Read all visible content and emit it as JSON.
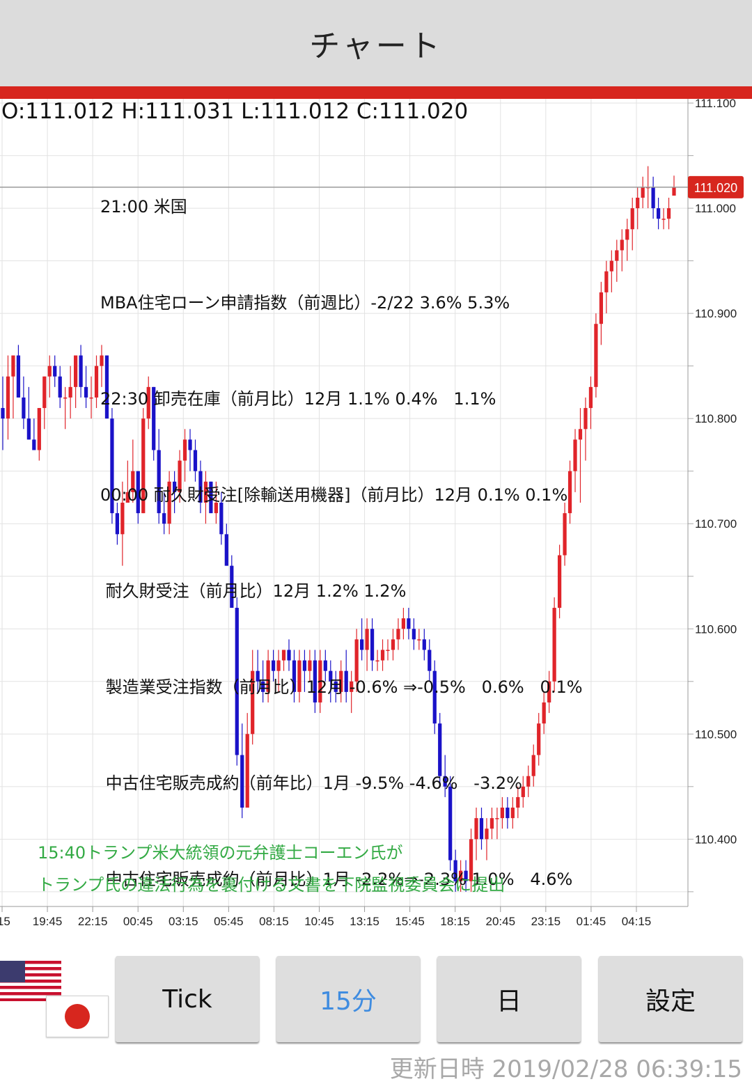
{
  "header": {
    "title": "チャート"
  },
  "ohlc": "O:111.012 H:111.031 L:111.012 C:111.020",
  "events": [
    "21:00 米国",
    "MBA住宅ローン申請指数（前週比）-2/22 3.6% 5.3%",
    "22:30 卸売在庫（前月比）12月 1.1% 0.4%   1.1%",
    "00:00 耐久財受注[除輸送用機器]（前月比）12月 0.1% 0.1%",
    " 耐久財受注（前月比）12月 1.2% 1.2%",
    " 製造業受注指数（前月比）12月 -0.6% ⇒-0.5%   0.6%   0.1%",
    " 中古住宅販売成約（前年比）1月 -9.5% -4.6%   -3.2%",
    " 中古住宅販売成約（前月比）1月 -2.2%⇒-2.3% 1.0%   4.6%"
  ],
  "news": [
    "15:40トランプ米大統領の元弁護士コーエン氏が",
    "トランプ氏の違法行為を裏付ける文書を下院監視委員会に提出"
  ],
  "colors": {
    "up": "#e0242a",
    "down": "#1a12c8",
    "accent": "#d7261e",
    "news": "#33aa44",
    "active_tab": "#3f8ce0"
  },
  "chart_data": {
    "type": "candlestick",
    "current_price_label": "111.020",
    "current_price": 111.02,
    "ylim": [
      110.336,
      111.104
    ],
    "y_ticks": [
      "111.100",
      "111.000",
      "110.900",
      "110.800",
      "110.700",
      "110.600",
      "110.500",
      "110.400"
    ],
    "x_ticks": [
      ":15",
      "19:45",
      "22:15",
      "00:45",
      "03:15",
      "05:45",
      "08:15",
      "10:45",
      "13:15",
      "15:45",
      "18:15",
      "20:45",
      "23:15",
      "01:45",
      "04:15"
    ],
    "candles": [
      [
        110.81,
        110.84,
        110.77,
        110.8
      ],
      [
        110.8,
        110.86,
        110.78,
        110.84
      ],
      [
        110.84,
        110.86,
        110.8,
        110.86
      ],
      [
        110.86,
        110.87,
        110.82,
        110.82
      ],
      [
        110.82,
        110.84,
        110.79,
        110.8
      ],
      [
        110.8,
        110.83,
        110.78,
        110.78
      ],
      [
        110.78,
        110.8,
        110.77,
        110.77
      ],
      [
        110.77,
        110.81,
        110.76,
        110.81
      ],
      [
        110.81,
        110.84,
        110.79,
        110.84
      ],
      [
        110.84,
        110.86,
        110.82,
        110.85
      ],
      [
        110.85,
        110.86,
        110.83,
        110.84
      ],
      [
        110.84,
        110.85,
        110.81,
        110.82
      ],
      [
        110.82,
        110.83,
        110.79,
        110.82
      ],
      [
        110.82,
        110.85,
        110.8,
        110.83
      ],
      [
        110.83,
        110.86,
        110.81,
        110.86
      ],
      [
        110.86,
        110.87,
        110.82,
        110.83
      ],
      [
        110.83,
        110.85,
        110.81,
        110.82
      ],
      [
        110.82,
        110.84,
        110.8,
        110.82
      ],
      [
        110.82,
        110.86,
        110.81,
        110.85
      ],
      [
        110.85,
        110.87,
        110.83,
        110.86
      ],
      [
        110.86,
        110.86,
        110.8,
        110.8
      ],
      [
        110.8,
        110.81,
        110.7,
        110.71
      ],
      [
        110.71,
        110.72,
        110.68,
        110.69
      ],
      [
        110.69,
        110.74,
        110.66,
        110.72
      ],
      [
        110.72,
        110.76,
        110.72,
        110.73
      ],
      [
        110.73,
        110.78,
        110.72,
        110.75
      ],
      [
        110.75,
        110.75,
        110.7,
        110.71
      ],
      [
        110.71,
        110.81,
        110.71,
        110.8
      ],
      [
        110.8,
        110.84,
        110.79,
        110.83
      ],
      [
        110.83,
        110.83,
        110.76,
        110.77
      ],
      [
        110.77,
        110.79,
        110.7,
        110.71
      ],
      [
        110.71,
        110.73,
        110.69,
        110.7
      ],
      [
        110.7,
        110.75,
        110.69,
        110.74
      ],
      [
        110.74,
        110.75,
        110.71,
        110.73
      ],
      [
        110.73,
        110.77,
        110.72,
        110.76
      ],
      [
        110.76,
        110.79,
        110.74,
        110.78
      ],
      [
        110.78,
        110.79,
        110.75,
        110.77
      ],
      [
        110.77,
        110.78,
        110.74,
        110.75
      ],
      [
        110.75,
        110.76,
        110.71,
        110.72
      ],
      [
        110.72,
        110.75,
        110.7,
        110.74
      ],
      [
        110.74,
        110.74,
        110.71,
        110.71
      ],
      [
        110.71,
        110.74,
        110.7,
        110.72
      ],
      [
        110.72,
        110.73,
        110.68,
        110.69
      ],
      [
        110.69,
        110.7,
        110.66,
        110.66
      ],
      [
        110.66,
        110.67,
        110.62,
        110.62
      ],
      [
        110.62,
        110.63,
        110.47,
        110.48
      ],
      [
        110.48,
        110.51,
        110.42,
        110.43
      ],
      [
        110.43,
        110.52,
        110.43,
        110.5
      ],
      [
        110.5,
        110.58,
        110.49,
        110.56
      ],
      [
        110.56,
        110.58,
        110.54,
        110.55
      ],
      [
        110.55,
        110.57,
        110.53,
        110.54
      ],
      [
        110.54,
        110.58,
        110.53,
        110.57
      ],
      [
        110.57,
        110.58,
        110.55,
        110.56
      ],
      [
        110.56,
        110.58,
        110.54,
        110.57
      ],
      [
        110.57,
        110.58,
        110.56,
        110.58
      ],
      [
        110.58,
        110.59,
        110.56,
        110.57
      ],
      [
        110.57,
        110.58,
        110.53,
        110.54
      ],
      [
        110.54,
        110.58,
        110.53,
        110.57
      ],
      [
        110.57,
        110.58,
        110.54,
        110.56
      ],
      [
        110.56,
        110.58,
        110.55,
        110.57
      ],
      [
        110.57,
        110.58,
        110.52,
        110.53
      ],
      [
        110.53,
        110.58,
        110.52,
        110.57
      ],
      [
        110.57,
        110.58,
        110.55,
        110.56
      ],
      [
        110.56,
        110.57,
        110.53,
        110.55
      ],
      [
        110.55,
        110.56,
        110.53,
        110.54
      ],
      [
        110.54,
        110.57,
        110.53,
        110.56
      ],
      [
        110.56,
        110.58,
        110.53,
        110.54
      ],
      [
        110.54,
        110.56,
        110.52,
        110.55
      ],
      [
        110.55,
        110.6,
        110.54,
        110.59
      ],
      [
        110.59,
        110.61,
        110.57,
        110.58
      ],
      [
        110.58,
        110.61,
        110.56,
        110.6
      ],
      [
        110.6,
        110.61,
        110.56,
        110.57
      ],
      [
        110.57,
        110.58,
        110.56,
        110.57
      ],
      [
        110.57,
        110.59,
        110.56,
        110.58
      ],
      [
        110.58,
        110.59,
        110.57,
        110.58
      ],
      [
        110.58,
        110.6,
        110.57,
        110.59
      ],
      [
        110.59,
        110.61,
        110.58,
        110.6
      ],
      [
        110.6,
        110.62,
        110.59,
        110.61
      ],
      [
        110.61,
        110.62,
        110.59,
        110.6
      ],
      [
        110.6,
        110.61,
        110.58,
        110.59
      ],
      [
        110.59,
        110.6,
        110.58,
        110.59
      ],
      [
        110.59,
        110.6,
        110.57,
        110.58
      ],
      [
        110.58,
        110.59,
        110.55,
        110.56
      ],
      [
        110.56,
        110.57,
        110.5,
        110.51
      ],
      [
        110.51,
        110.52,
        110.45,
        110.46
      ],
      [
        110.46,
        110.48,
        110.44,
        110.45
      ],
      [
        110.45,
        110.46,
        110.37,
        110.38
      ],
      [
        110.38,
        110.39,
        110.35,
        110.36
      ],
      [
        110.36,
        110.38,
        110.35,
        110.37
      ],
      [
        110.37,
        110.38,
        110.35,
        110.36
      ],
      [
        110.36,
        110.41,
        110.35,
        110.4
      ],
      [
        110.4,
        110.43,
        110.38,
        110.42
      ],
      [
        110.42,
        110.43,
        110.39,
        110.4
      ],
      [
        110.4,
        110.42,
        110.38,
        110.41
      ],
      [
        110.41,
        110.43,
        110.4,
        110.42
      ],
      [
        110.42,
        110.43,
        110.4,
        110.42
      ],
      [
        110.42,
        110.44,
        110.41,
        110.43
      ],
      [
        110.43,
        110.44,
        110.41,
        110.42
      ],
      [
        110.42,
        110.44,
        110.41,
        110.43
      ],
      [
        110.43,
        110.45,
        110.42,
        110.44
      ],
      [
        110.44,
        110.46,
        110.43,
        110.45
      ],
      [
        110.45,
        110.47,
        110.44,
        110.46
      ],
      [
        110.46,
        110.49,
        110.45,
        110.48
      ],
      [
        110.48,
        110.52,
        110.47,
        110.51
      ],
      [
        110.51,
        110.54,
        110.5,
        110.53
      ],
      [
        110.53,
        110.56,
        110.52,
        110.55
      ],
      [
        110.55,
        110.63,
        110.54,
        110.62
      ],
      [
        110.62,
        110.68,
        110.61,
        110.67
      ],
      [
        110.67,
        110.72,
        110.66,
        110.71
      ],
      [
        110.71,
        110.76,
        110.7,
        110.75
      ],
      [
        110.75,
        110.79,
        110.73,
        110.78
      ],
      [
        110.78,
        110.81,
        110.72,
        110.79
      ],
      [
        110.79,
        110.82,
        110.76,
        110.81
      ],
      [
        110.81,
        110.84,
        110.79,
        110.83
      ],
      [
        110.83,
        110.9,
        110.82,
        110.89
      ],
      [
        110.89,
        110.93,
        110.87,
        110.92
      ],
      [
        110.92,
        110.95,
        110.9,
        110.94
      ],
      [
        110.94,
        110.96,
        110.92,
        110.95
      ],
      [
        110.95,
        110.97,
        110.93,
        110.96
      ],
      [
        110.96,
        110.98,
        110.94,
        110.97
      ],
      [
        110.97,
        110.99,
        110.95,
        110.98
      ],
      [
        110.98,
        111.01,
        110.96,
        111.0
      ],
      [
        111.0,
        111.02,
        110.98,
        111.01
      ],
      [
        111.01,
        111.03,
        111.0,
        111.02
      ],
      [
        111.02,
        111.04,
        111.0,
        111.02
      ],
      [
        111.02,
        111.03,
        110.99,
        111.0
      ],
      [
        111.0,
        111.01,
        110.98,
        110.99
      ],
      [
        110.99,
        111.0,
        110.98,
        110.99
      ],
      [
        110.99,
        111.01,
        110.98,
        111.0
      ],
      [
        111.012,
        111.031,
        111.012,
        111.02
      ]
    ]
  },
  "buttons": [
    {
      "label": "Tick"
    },
    {
      "label": "15分"
    },
    {
      "label": "日"
    },
    {
      "label": "設定"
    }
  ],
  "updated": "更新日時 2019/02/28 06:39:15"
}
